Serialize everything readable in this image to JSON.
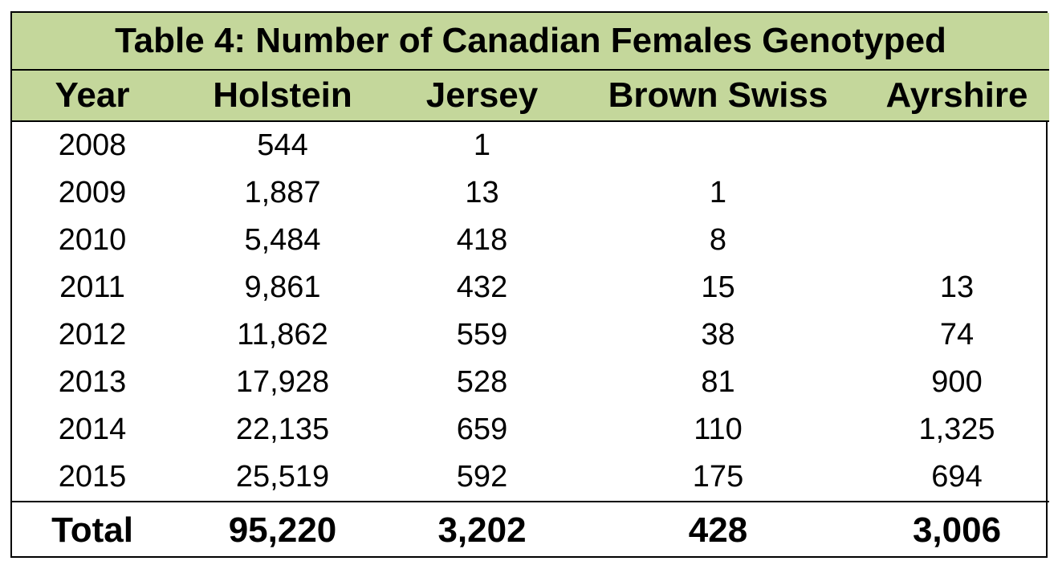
{
  "chart_data": {
    "type": "table",
    "title": "Table 4: Number of Canadian Females Genotyped",
    "columns": [
      "Year",
      "Holstein",
      "Jersey",
      "Brown Swiss",
      "Ayrshire"
    ],
    "rows": [
      [
        "2008",
        "544",
        "1",
        "",
        ""
      ],
      [
        "2009",
        "1,887",
        "13",
        "1",
        ""
      ],
      [
        "2010",
        "5,484",
        "418",
        "8",
        ""
      ],
      [
        "2011",
        "9,861",
        "432",
        "15",
        "13"
      ],
      [
        "2012",
        "11,862",
        "559",
        "38",
        "74"
      ],
      [
        "2013",
        "17,928",
        "528",
        "81",
        "900"
      ],
      [
        "2014",
        "22,135",
        "659",
        "110",
        "1,325"
      ],
      [
        "2015",
        "25,519",
        "592",
        "175",
        "694"
      ]
    ],
    "total_row": [
      "Total",
      "95,220",
      "3,202",
      "428",
      "3,006"
    ],
    "colors": {
      "header_fill": "#c4d79b",
      "border": "#000000"
    }
  }
}
